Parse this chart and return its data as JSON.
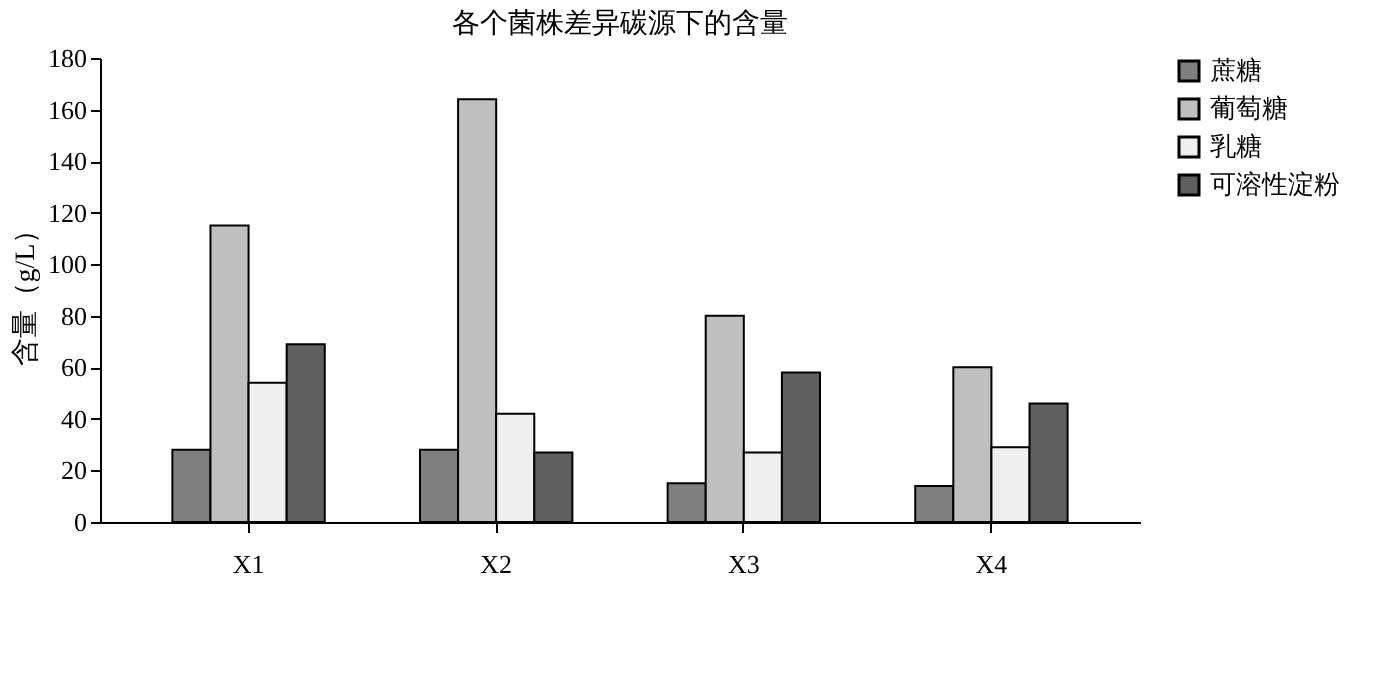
{
  "chart_data": {
    "type": "bar",
    "title": "各个菌株差异碳源下的含量",
    "ylabel": "含量（g/L）",
    "categories": [
      "X1",
      "X2",
      "X3",
      "X4"
    ],
    "series": [
      {
        "name": "蔗糖",
        "color": "#7f7f7f",
        "values": [
          28,
          28,
          15,
          14
        ]
      },
      {
        "name": "葡萄糖",
        "color": "#bfbfbf",
        "values": [
          115,
          164,
          80,
          60
        ]
      },
      {
        "name": "乳糖",
        "color": "#efefef",
        "values": [
          54,
          42,
          27,
          29
        ]
      },
      {
        "name": "可溶性淀粉",
        "color": "#5f5f5f",
        "values": [
          69,
          27,
          58,
          46
        ]
      }
    ],
    "ylim": [
      0,
      180
    ],
    "yticks": [
      0,
      20,
      40,
      60,
      80,
      100,
      120,
      140,
      160,
      180
    ],
    "grid": false,
    "legend": "right"
  }
}
